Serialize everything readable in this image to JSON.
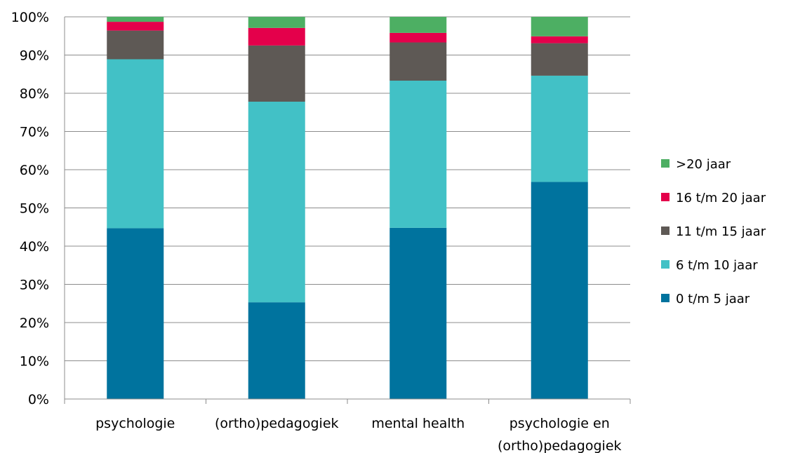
{
  "chart_data": {
    "type": "bar",
    "stacked": true,
    "categories": [
      [
        "psychologie"
      ],
      [
        "(ortho)pedagogiek"
      ],
      [
        "mental health"
      ],
      [
        "psychologie en",
        "(ortho)pedagogiek"
      ]
    ],
    "series": [
      {
        "name": "0 t/m 5 jaar",
        "color": "#00739E",
        "values": [
          44.7,
          25.3,
          44.8,
          56.8
        ]
      },
      {
        "name": "6 t/m 10 jaar",
        "color": "#42C1C6",
        "values": [
          44.2,
          52.5,
          38.5,
          27.8
        ]
      },
      {
        "name": "11 t/m 15 jaar",
        "color": "#5E5955",
        "values": [
          7.5,
          14.7,
          10.0,
          8.5
        ]
      },
      {
        "name": "16 t/m 20 jaar",
        "color": "#E4004B",
        "values": [
          2.3,
          4.6,
          2.5,
          1.8
        ]
      },
      {
        "name": ">20 jaar",
        "color": "#4DAF63",
        "values": [
          1.3,
          2.9,
          4.2,
          5.1
        ]
      }
    ],
    "y_ticks": [
      "0%",
      "10%",
      "20%",
      "30%",
      "40%",
      "50%",
      "60%",
      "70%",
      "80%",
      "90%",
      "100%"
    ],
    "ylim": [
      0,
      100
    ],
    "grid": true,
    "legend_position": "right"
  }
}
